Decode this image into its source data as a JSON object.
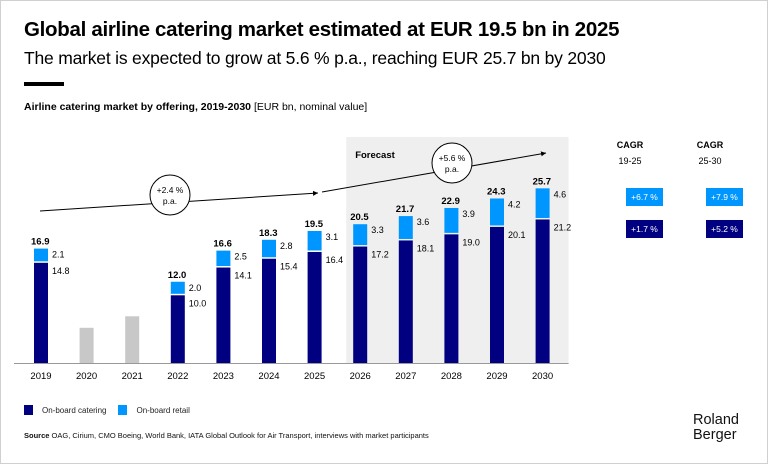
{
  "header": {
    "title": "Global airline catering market estimated at EUR 19.5 bn in 2025",
    "subtitle": "The market is expected to grow at 5.6 % p.a., reaching EUR 25.7 bn by 2030"
  },
  "colors": {
    "catering": "#000080",
    "retail": "#0096FF",
    "unsplit": "#C8C8C8",
    "forecast_bg": "#EFEFEF"
  },
  "chart_data": {
    "type": "bar",
    "stacked": true,
    "title": "Airline catering market by offering, 2019-2030",
    "unit": "[EUR bn, nominal value]",
    "xlabel": "",
    "ylabel": "EUR bn",
    "ylim": [
      0,
      27
    ],
    "grid": false,
    "legend_position": "bottom-left",
    "categories": [
      "2019",
      "2020",
      "2021",
      "2022",
      "2023",
      "2024",
      "2025",
      "2026",
      "2027",
      "2028",
      "2029",
      "2030"
    ],
    "series": [
      {
        "name": "On-board catering",
        "values": [
          14.8,
          null,
          null,
          10.0,
          14.1,
          15.4,
          16.4,
          17.2,
          18.1,
          19.0,
          20.1,
          21.2
        ]
      },
      {
        "name": "On-board retail",
        "values": [
          2.1,
          null,
          null,
          2.0,
          2.5,
          2.8,
          3.1,
          3.3,
          3.6,
          3.9,
          4.2,
          4.6
        ]
      }
    ],
    "unsplit_estimates": {
      "2020": 5.2,
      "2021": 6.9
    },
    "totals": [
      "16.9",
      "",
      "",
      "12.0",
      "16.6",
      "18.3",
      "19.5",
      "20.5",
      "21.7",
      "22.9",
      "24.3",
      "25.7"
    ],
    "forecast_label": "Forecast",
    "forecast_range": [
      "2026",
      "2030"
    ],
    "annotations": [
      {
        "text_line1": "+2.4 %",
        "text_line2": "p.a.",
        "from": "2019",
        "to": "2025"
      },
      {
        "text_line1": "+5.6 %",
        "text_line2": "p.a.",
        "from": "2025",
        "to": "2030"
      }
    ],
    "cagr_table": {
      "columns": [
        {
          "heading": "CAGR",
          "period": "19-25",
          "retail": "+6.7 %",
          "catering": "+1.7 %"
        },
        {
          "heading": "CAGR",
          "period": "25-30",
          "retail": "+7.9 %",
          "catering": "+5.2 %"
        }
      ]
    }
  },
  "legend": [
    {
      "label": "On-board catering",
      "color": "#000080"
    },
    {
      "label": "On-board retail",
      "color": "#0096FF"
    }
  ],
  "footer": {
    "source_label": "Source",
    "source_text": "OAG, Cirium, CMO Boeing, World Bank, IATA Global Outlook for Air Transport, interviews with market participants",
    "logo_line1": "Roland",
    "logo_line2": "Berger"
  }
}
